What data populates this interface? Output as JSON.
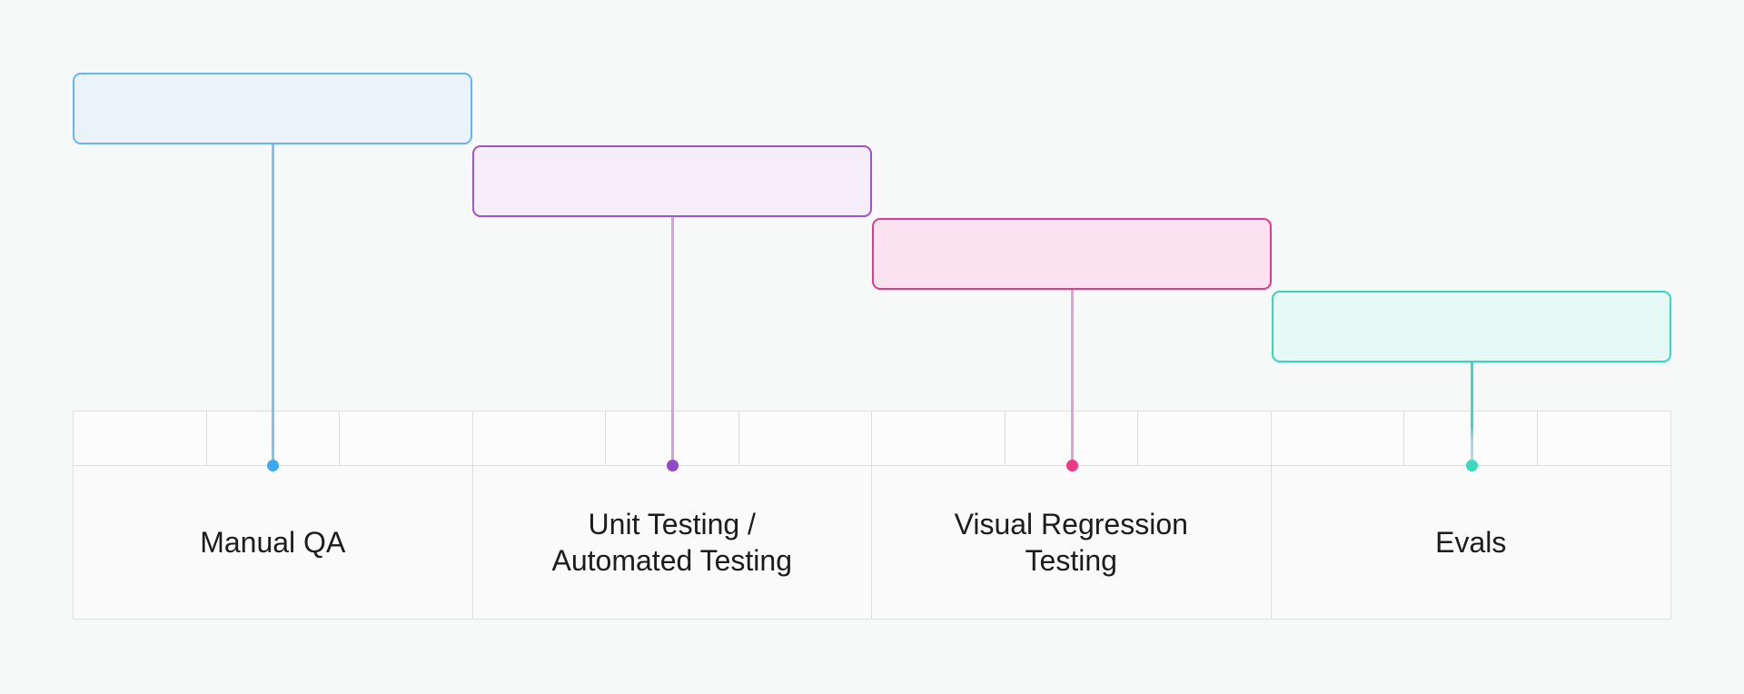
{
  "diagram": {
    "background_color": "#F7F8F8",
    "grid_line_color": "#DEDEDE",
    "label_text_color": "#1C1C1C",
    "tick_cell_color": "#FCFCFC",
    "label_cell_color": "#FAFAFA",
    "timeline": {
      "columns": 4,
      "tick_cells_per_column": 3,
      "total_tick_cells": 12
    },
    "stages": [
      {
        "label_line1": "Manual QA",
        "label_line2": "",
        "box_fill": "#EAF3FC",
        "box_border": "#64B5F0",
        "connector_color": "#7EC1F3",
        "connector_fade_color": "",
        "dot_color": "#3EA7F2"
      },
      {
        "label_line1": "Unit Testing /",
        "label_line2": "Automated Testing",
        "box_fill": "#F6EDFB",
        "box_border": "#9C55CC",
        "connector_color": "#D0A2DF",
        "connector_fade_color": "",
        "dot_color": "#9148C9"
      },
      {
        "label_line1": "Visual Regression",
        "label_line2": "Testing",
        "box_fill": "#FBE2EF",
        "box_border": "#E23A8C",
        "connector_color": "#DFA0D8",
        "connector_fade_color": "",
        "dot_color": "#ED3884"
      },
      {
        "label_line1": "Evals",
        "label_line2": "",
        "box_fill": "#E6F9F5",
        "box_border": "#35D6C0",
        "connector_color": "#3ED9C4",
        "connector_fade_color": "#A9D6F2",
        "dot_color": "#3BD9BE"
      }
    ]
  }
}
